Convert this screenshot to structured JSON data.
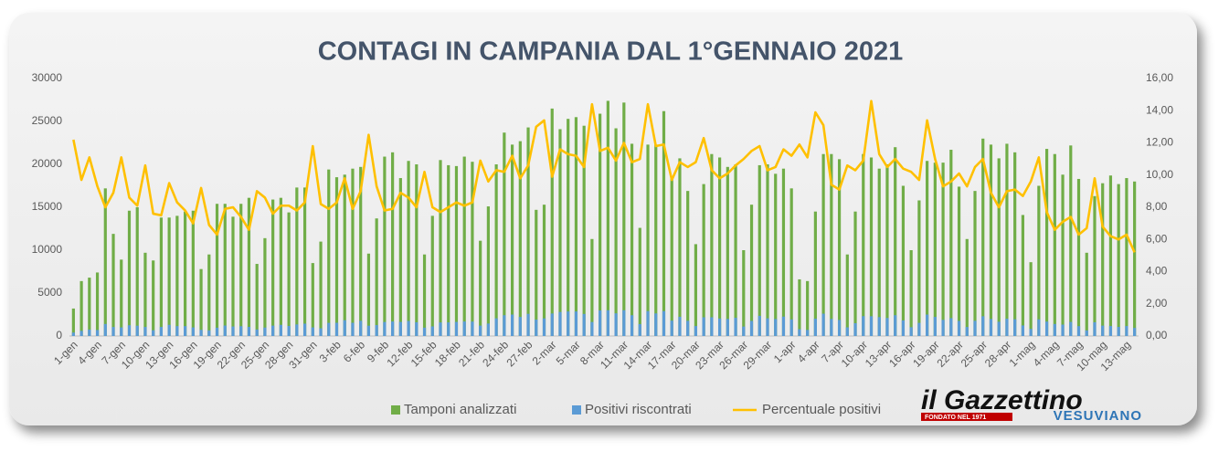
{
  "chart_data": {
    "type": "bar-line",
    "title": "CONTAGI IN CAMPANIA DAL 1°GENNAIO 2021",
    "categories": [
      "1-gen",
      null,
      null,
      "4-gen",
      null,
      null,
      "7-gen",
      null,
      null,
      "10-gen",
      null,
      null,
      "13-gen",
      null,
      null,
      "16-gen",
      null,
      null,
      "19-gen",
      null,
      null,
      "22-gen",
      null,
      null,
      "25-gen",
      null,
      null,
      "28-gen",
      null,
      null,
      "31-gen",
      null,
      null,
      "3-feb",
      null,
      null,
      "6-feb",
      null,
      null,
      "9-feb",
      null,
      null,
      "12-feb",
      null,
      null,
      "15-feb",
      null,
      null,
      "18-feb",
      null,
      null,
      "21-feb",
      null,
      null,
      "24-feb",
      null,
      null,
      "27-feb",
      null,
      null,
      "2-mar",
      null,
      null,
      "5-mar",
      null,
      null,
      "8-mar",
      null,
      null,
      "11-mar",
      null,
      null,
      "14-mar",
      null,
      null,
      "17-mar",
      null,
      null,
      "20-mar",
      null,
      null,
      "23-mar",
      null,
      null,
      "26-mar",
      null,
      null,
      "29-mar",
      null,
      null,
      "1-apr",
      null,
      null,
      "4-apr",
      null,
      null,
      "7-apr",
      null,
      null,
      "10-apr",
      null,
      null,
      "13-apr",
      null,
      null,
      "16-apr",
      null,
      null,
      "19-apr",
      null,
      null,
      "22-apr",
      null,
      null,
      "25-apr",
      null,
      null,
      "28-apr",
      null,
      null,
      "1-mag",
      null,
      null,
      "4-mag",
      null,
      null,
      "7-mag",
      null,
      null,
      "10-mag",
      null,
      null,
      "13-mag",
      null
    ],
    "series": [
      {
        "name": "Tamponi analizzati",
        "color": "#70ad47",
        "kind": "bar",
        "values": [
          3200,
          6400,
          6800,
          7400,
          17200,
          11900,
          8900,
          14600,
          15000,
          9700,
          8800,
          13800,
          13800,
          14000,
          14500,
          14600,
          7800,
          9500,
          15400,
          15400,
          13900,
          15400,
          16100,
          8400,
          11400,
          15900,
          16100,
          14400,
          17300,
          17300,
          8500,
          11000,
          19400,
          18500,
          18800,
          19500,
          19700,
          9600,
          13700,
          20900,
          21400,
          18400,
          20400,
          20000,
          9500,
          14000,
          20500,
          19900,
          19800,
          20900,
          20300,
          11100,
          15100,
          20000,
          23700,
          22300,
          22700,
          24300,
          14700,
          15300,
          26500,
          24100,
          25300,
          25500,
          24500,
          11300,
          25900,
          27400,
          24200,
          27200,
          22400,
          12600,
          22300,
          22300,
          26200,
          18500,
          20700,
          16900,
          10700,
          17700,
          21200,
          20800,
          19700,
          20000,
          10000,
          15300,
          19900,
          20000,
          18900,
          19500,
          17200,
          6600,
          6400,
          14500,
          21200,
          21200,
          20600,
          9500,
          14500,
          21200,
          20800,
          19500,
          20000,
          22000,
          17500,
          10000,
          15800,
          20400,
          20200,
          20200,
          21700,
          17400,
          11300,
          16900,
          23000,
          22300,
          20700,
          22400,
          21400,
          14100,
          8600,
          17500,
          21800,
          21200,
          18800,
          22200,
          18300,
          9700,
          16300,
          17800,
          18700,
          17700,
          18400,
          18000
        ]
      },
      {
        "name": "Positivi riscontrati",
        "color": "#5b9bd5",
        "kind": "bar",
        "values": [
          400,
          600,
          750,
          700,
          1400,
          1050,
          1000,
          1250,
          1200,
          1050,
          670,
          1050,
          1300,
          1150,
          1150,
          1000,
          720,
          650,
          970,
          1220,
          1110,
          1140,
          1060,
          760,
          980,
          1210,
          1300,
          1170,
          1350,
          1440,
          1000,
          900,
          1530,
          1540,
          1840,
          1540,
          1770,
          1200,
          1270,
          1630,
          1690,
          1640,
          1750,
          1600,
          970,
          1120,
          1580,
          1590,
          1640,
          1690,
          1680,
          1210,
          1450,
          2060,
          2420,
          2500,
          2220,
          2580,
          1910,
          2050,
          2620,
          2800,
          2860,
          2860,
          2570,
          1630,
          2980,
          3000,
          2640,
          3000,
          2420,
          1390,
          2900,
          2630,
          2900,
          1790,
          2240,
          1770,
          1160,
          2180,
          2180,
          2040,
          1990,
          2120,
          1100,
          1760,
          2350,
          2060,
          1980,
          2260,
          1930,
          790,
          710,
          2020,
          2600,
          1990,
          1870,
          1010,
          1490,
          2310,
          2300,
          2200,
          2100,
          2420,
          1820,
          1020,
          1530,
          2500,
          2220,
          1880,
          2080,
          1760,
          1050,
          1770,
          2300,
          1980,
          1660,
          2020,
          1950,
          1230,
          830,
          1940,
          1680,
          1400,
          1330,
          1640,
          1150,
          650,
          1600,
          1210,
          1160,
          1060,
          1160,
          940
        ]
      },
      {
        "name": "Percentuale positivi",
        "color": "#ffc000",
        "kind": "line",
        "axis": "y2",
        "values": [
          12.2,
          9.7,
          11.1,
          9.3,
          8.0,
          8.9,
          11.1,
          8.6,
          8.1,
          10.6,
          7.6,
          7.5,
          9.5,
          8.3,
          7.8,
          7.0,
          9.2,
          6.9,
          6.3,
          7.9,
          8.0,
          7.4,
          6.6,
          9.0,
          8.6,
          7.6,
          8.1,
          8.1,
          7.8,
          8.3,
          11.8,
          8.2,
          7.9,
          8.3,
          9.8,
          7.9,
          9.0,
          12.5,
          9.3,
          7.8,
          7.9,
          8.9,
          8.6,
          8.0,
          10.2,
          8.0,
          7.7,
          8.0,
          8.3,
          8.1,
          8.3,
          10.9,
          9.6,
          10.3,
          10.2,
          11.2,
          9.8,
          10.6,
          13.0,
          13.4,
          9.9,
          11.6,
          11.3,
          11.2,
          10.5,
          14.4,
          11.5,
          11.7,
          10.9,
          12.0,
          10.8,
          11.0,
          14.4,
          11.8,
          11.9,
          9.7,
          10.8,
          10.5,
          10.8,
          12.3,
          10.3,
          9.8,
          10.1,
          10.6,
          11.0,
          11.5,
          11.8,
          10.3,
          10.5,
          11.6,
          11.2,
          11.9,
          11.1,
          13.9,
          13.1,
          9.4,
          9.1,
          10.6,
          10.3,
          10.9,
          14.6,
          11.3,
          10.5,
          11.0,
          10.4,
          10.2,
          9.7,
          13.4,
          11.0,
          9.3,
          9.6,
          10.1,
          9.3,
          10.5,
          11.0,
          8.9,
          8.0,
          9.0,
          9.1,
          8.7,
          9.6,
          11.1,
          7.7,
          6.6,
          7.1,
          7.4,
          6.3,
          6.7,
          9.8,
          6.8,
          6.2,
          6.0,
          6.3,
          5.2
        ]
      }
    ],
    "ylim": [
      0,
      30000
    ],
    "yticks": [
      0,
      5000,
      10000,
      15000,
      20000,
      25000,
      30000
    ],
    "y2lim": [
      0,
      16
    ],
    "y2ticks": [
      {
        "value": 0,
        "label": "0,00"
      },
      {
        "value": 2,
        "label": "2,00"
      },
      {
        "value": 4,
        "label": "4,00"
      },
      {
        "value": 6,
        "label": "6,00"
      },
      {
        "value": 8,
        "label": "8,00"
      },
      {
        "value": 10,
        "label": "10,00"
      },
      {
        "value": 12,
        "label": "12,00"
      },
      {
        "value": 14,
        "label": "14,00"
      },
      {
        "value": 16,
        "label": "16,00"
      }
    ],
    "grid": false,
    "legend": "bottom"
  },
  "logo": {
    "name": "il Gazzettino",
    "founded": "FONDATO NEL 1971",
    "region": "VESUVIANO"
  }
}
